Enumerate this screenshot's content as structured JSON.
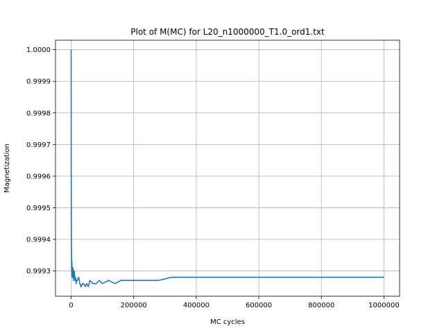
{
  "chart_data": {
    "type": "line",
    "title": "Plot of M(MC) for L20_n1000000_T1.0_ord1.txt",
    "xlabel": "MC cycles",
    "ylabel": "Magnetization",
    "xlim": [
      -50000,
      1050000
    ],
    "ylim": [
      0.99922,
      1.00003
    ],
    "x_ticks": [
      0,
      200000,
      400000,
      600000,
      800000,
      1000000
    ],
    "x_tick_labels": [
      "0",
      "200000",
      "400000",
      "600000",
      "800000",
      "1000000"
    ],
    "y_ticks": [
      0.9993,
      0.9994,
      0.9995,
      0.9996,
      0.9997,
      0.9998,
      0.9999,
      1.0
    ],
    "y_tick_labels": [
      "0.9993",
      "0.9994",
      "0.9995",
      "0.9996",
      "0.9997",
      "0.9998",
      "0.9999",
      "1.0000"
    ],
    "grid": true,
    "series": [
      {
        "color": "#1f77b4",
        "x": [
          0,
          50,
          100,
          200,
          300,
          500,
          700,
          1000,
          1500,
          2000,
          2500,
          3000,
          4000,
          5000,
          6000,
          7000,
          8000,
          9000,
          10000,
          12000,
          14000,
          16000,
          18000,
          20000,
          24000,
          28000,
          32000,
          36000,
          40000,
          45000,
          50000,
          55000,
          60000,
          70000,
          80000,
          90000,
          100000,
          120000,
          140000,
          160000,
          180000,
          200000,
          240000,
          280000,
          320000,
          360000,
          400000,
          440000,
          480000,
          520000,
          560000,
          600000,
          640000,
          680000,
          720000,
          760000,
          800000,
          840000,
          880000,
          920000,
          960000,
          1000000
        ],
        "y": [
          1.0,
          0.99995,
          0.99988,
          0.99975,
          0.99962,
          0.99955,
          0.99945,
          0.99938,
          0.99935,
          0.9993,
          0.99933,
          0.99928,
          0.9993,
          0.99928,
          0.99931,
          0.99927,
          0.99929,
          0.99928,
          0.9993,
          0.99927,
          0.99928,
          0.99926,
          0.99927,
          0.99927,
          0.99928,
          0.99926,
          0.99925,
          0.99926,
          0.99926,
          0.99925,
          0.99926,
          0.99925,
          0.99927,
          0.99926,
          0.99926,
          0.99927,
          0.99926,
          0.99927,
          0.99926,
          0.99927,
          0.99927,
          0.99927,
          0.99927,
          0.99927,
          0.99928,
          0.99928,
          0.99928,
          0.99928,
          0.99928,
          0.99928,
          0.99928,
          0.99928,
          0.99928,
          0.99928,
          0.99928,
          0.99928,
          0.99928,
          0.99928,
          0.99928,
          0.99928,
          0.99928,
          0.99928
        ]
      }
    ]
  }
}
